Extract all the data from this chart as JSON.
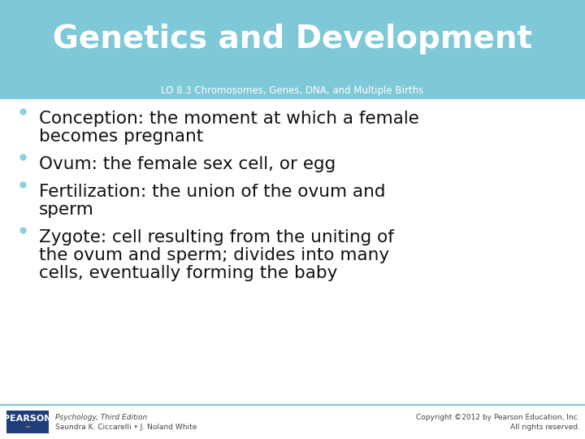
{
  "title": "Genetics and Development",
  "subtitle": "LO 8.3 Chromosomes, Genes, DNA, and Multiple Births",
  "header_bg_color": "#7EC8D8",
  "body_bg_color": "#FFFFFF",
  "title_color": "#FFFFFF",
  "subtitle_color": "#FFFFFF",
  "bullet_color": "#8DCFDF",
  "body_text_color": "#111111",
  "bullets": [
    [
      "Conception: the moment at which a female",
      "becomes pregnant"
    ],
    [
      "Ovum: the female sex cell, or egg"
    ],
    [
      "Fertilization: the union of the ovum and",
      "sperm"
    ],
    [
      "Zygote: cell resulting from the uniting of",
      "the ovum and sperm; divides into many",
      "cells, eventually forming the baby"
    ]
  ],
  "footer_left_line1": "Psychology, Third Edition",
  "footer_left_line2": "Saundra K. Ciccarelli • J. Noland White",
  "footer_right_line1": "Copyright ©2012 by Pearson Education, Inc.",
  "footer_right_line2": "All rights reserved.",
  "pearson_box_color": "#1F3D7A",
  "pearson_text": "PEARSON",
  "footer_text_color": "#444444",
  "footer_line_color": "#7EC8D8",
  "title_fontsize": 28,
  "subtitle_fontsize": 8.5,
  "bullet_fontsize": 15.5,
  "footer_fontsize": 6.5,
  "pearson_fontsize": 8
}
